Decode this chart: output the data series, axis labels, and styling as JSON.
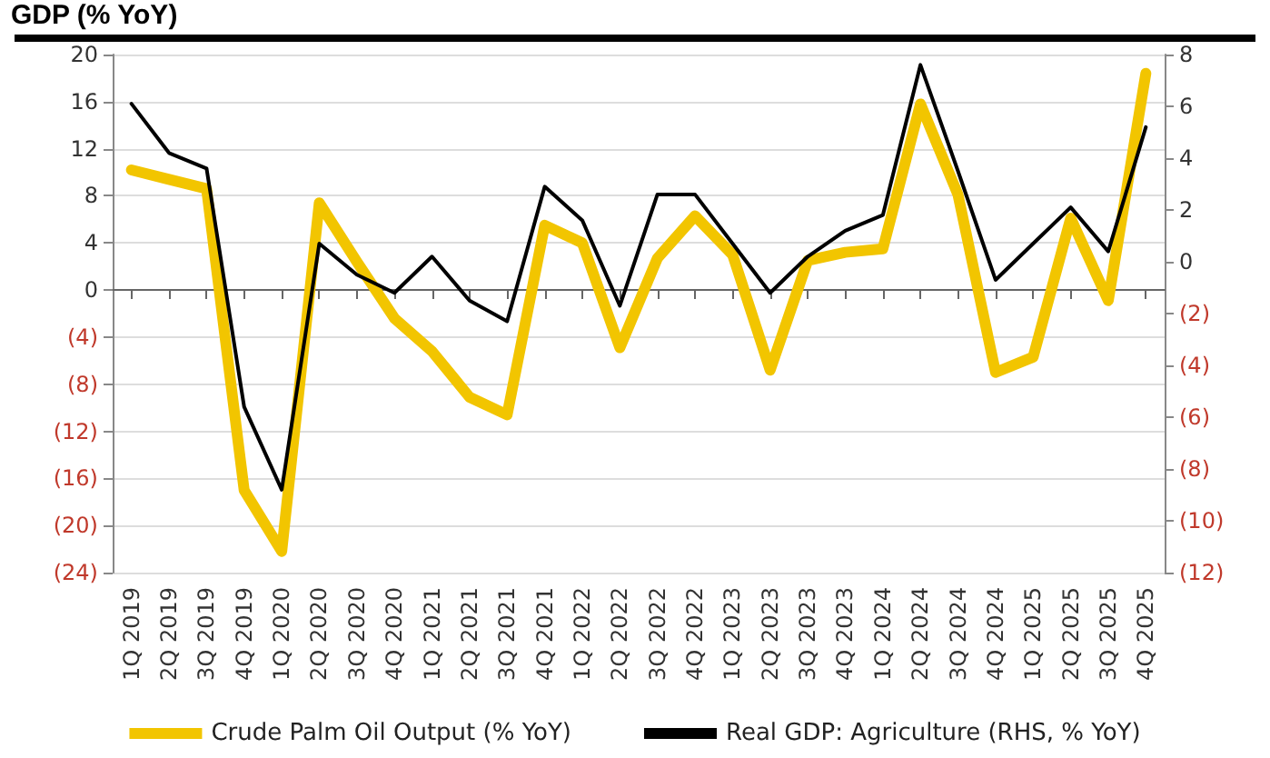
{
  "chart_data": {
    "type": "line",
    "title": "GDP (% YoY)",
    "categories": [
      "1Q 2019",
      "2Q 2019",
      "3Q 2019",
      "4Q 2019",
      "1Q 2020",
      "2Q 2020",
      "3Q 2020",
      "4Q 2020",
      "1Q 2021",
      "2Q 2021",
      "3Q 2021",
      "4Q 2021",
      "1Q 2022",
      "2Q 2022",
      "3Q 2022",
      "4Q 2022",
      "1Q 2023",
      "2Q 2023",
      "3Q 2023",
      "4Q 2023",
      "1Q 2024",
      "2Q 2024",
      "3Q 2024",
      "4Q 2024",
      "1Q 2025",
      "2Q 2025",
      "3Q 2025",
      "4Q 2025"
    ],
    "series": [
      {
        "name": "Crude Palm Oil Output (% YoY)",
        "color": "#f2c500",
        "values": [
          10.2,
          9.4,
          8.6,
          -17,
          -22.2,
          7.4,
          2.4,
          -2.4,
          -5.2,
          -9.1,
          -10.6,
          5.5,
          4,
          -4.9,
          2.7,
          6.3,
          3,
          -6.8,
          2.5,
          3.2,
          3.5,
          15.8,
          8.1,
          -7,
          -5.7,
          6.1,
          -0.9,
          18.4
        ]
      },
      {
        "name": "Real GDP: Agriculture (RHS, % YoY)",
        "color": "#000000",
        "axis": "y2",
        "values": [
          6.1,
          4.2,
          3.6,
          -5.6,
          -8.8,
          0.7,
          -0.5,
          -1.2,
          0.2,
          -1.5,
          -2.3,
          2.9,
          1.6,
          -1.7,
          2.6,
          2.6,
          0.7,
          -1.2,
          0.2,
          1.2,
          1.8,
          7.6,
          3.5,
          -0.7,
          0.7,
          2.1,
          0.4,
          5.2
        ]
      }
    ],
    "ylim": [
      -24,
      20
    ],
    "yticks": [
      20,
      16,
      12,
      8,
      4,
      0,
      {
        "value": -4,
        "label": "(4)"
      },
      {
        "value": -8,
        "label": "(8)"
      },
      {
        "value": -12,
        "label": "(12)"
      },
      {
        "value": -16,
        "label": "(16)"
      },
      {
        "value": -20,
        "label": "(20)"
      },
      {
        "value": -24,
        "label": "(24)"
      }
    ],
    "y2lim": [
      -12,
      8
    ],
    "y2ticks": [
      8,
      6,
      4,
      2,
      0,
      {
        "value": -2,
        "label": "(2)"
      },
      {
        "value": -4,
        "label": "(4)"
      },
      {
        "value": -6,
        "label": "(6)"
      },
      {
        "value": -8,
        "label": "(8)"
      },
      {
        "value": -10,
        "label": "(10)"
      },
      {
        "value": -12,
        "label": "(12)"
      }
    ],
    "grid": "y",
    "legend": "bottom",
    "marker": "none",
    "line_style": "solid"
  }
}
